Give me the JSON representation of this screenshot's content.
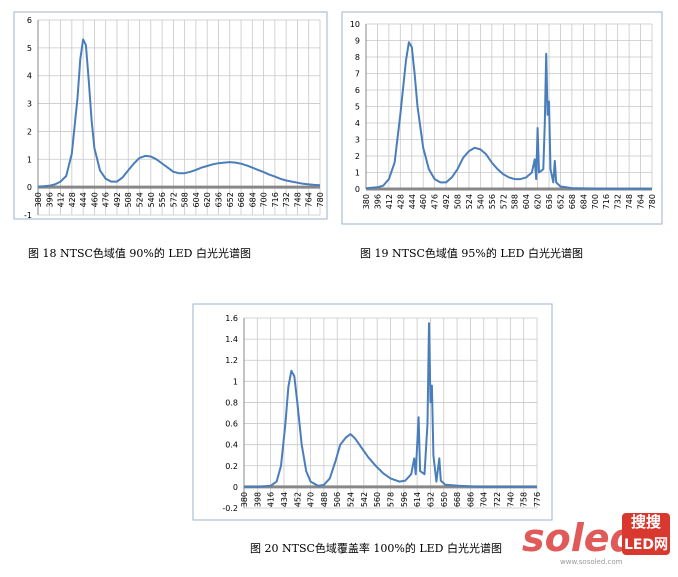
{
  "chart_data": [
    {
      "type": "line",
      "caption": "图 18 NTSC色域值 90%的 LED 白光光谱图",
      "x": [
        380,
        388,
        396,
        404,
        412,
        420,
        428,
        436,
        440,
        444,
        448,
        452,
        456,
        460,
        468,
        476,
        484,
        492,
        500,
        508,
        516,
        524,
        532,
        540,
        548,
        556,
        564,
        572,
        580,
        588,
        596,
        604,
        612,
        620,
        628,
        636,
        644,
        652,
        660,
        668,
        676,
        684,
        692,
        700,
        708,
        716,
        724,
        732,
        740,
        748,
        756,
        764,
        772,
        780
      ],
      "series": [
        {
          "color": "#4a7ebb",
          "values": [
            0.02,
            0.03,
            0.05,
            0.1,
            0.2,
            0.4,
            1.2,
            3.2,
            4.6,
            5.3,
            5.1,
            3.8,
            2.4,
            1.4,
            0.6,
            0.3,
            0.2,
            0.2,
            0.35,
            0.6,
            0.85,
            1.05,
            1.12,
            1.1,
            1.0,
            0.85,
            0.7,
            0.55,
            0.5,
            0.5,
            0.55,
            0.62,
            0.7,
            0.76,
            0.82,
            0.86,
            0.88,
            0.9,
            0.88,
            0.84,
            0.78,
            0.7,
            0.62,
            0.54,
            0.45,
            0.38,
            0.3,
            0.24,
            0.2,
            0.16,
            0.12,
            0.1,
            0.08,
            0.07
          ]
        }
      ],
      "xlim": [
        380,
        780
      ],
      "xticks": [
        380,
        396,
        412,
        428,
        444,
        460,
        476,
        492,
        508,
        524,
        540,
        556,
        572,
        588,
        604,
        620,
        636,
        652,
        668,
        684,
        700,
        716,
        732,
        748,
        764,
        780
      ],
      "ylim": [
        -1,
        6
      ],
      "yticks": [
        -1,
        0,
        1,
        2,
        3,
        4,
        5,
        6
      ],
      "grid": true
    },
    {
      "type": "line",
      "caption": "图 19 NTSC色域值 95%的 LED 白光光谱图",
      "x": [
        380,
        396,
        404,
        412,
        420,
        428,
        436,
        440,
        444,
        448,
        452,
        460,
        468,
        476,
        484,
        492,
        500,
        508,
        516,
        524,
        532,
        540,
        548,
        556,
        564,
        572,
        580,
        588,
        596,
        604,
        612,
        616,
        618,
        620,
        622,
        628,
        630,
        632,
        634,
        636,
        638,
        642,
        644,
        646,
        652,
        660,
        668,
        676,
        700,
        740,
        780
      ],
      "series": [
        {
          "color": "#4a7ebb",
          "values": [
            0.05,
            0.1,
            0.2,
            0.6,
            1.6,
            4.5,
            7.8,
            8.9,
            8.6,
            7.0,
            5.0,
            2.5,
            1.2,
            0.6,
            0.4,
            0.4,
            0.7,
            1.2,
            1.9,
            2.3,
            2.5,
            2.4,
            2.1,
            1.6,
            1.2,
            0.9,
            0.7,
            0.6,
            0.6,
            0.7,
            1.0,
            1.8,
            0.6,
            3.7,
            1.0,
            1.2,
            4.0,
            8.2,
            4.5,
            5.3,
            1.2,
            0.4,
            1.7,
            0.4,
            0.15,
            0.1,
            0.05,
            0.04,
            0.03,
            0.02,
            0.02
          ]
        }
      ],
      "xlim": [
        380,
        780
      ],
      "xticks": [
        380,
        396,
        412,
        428,
        444,
        460,
        476,
        492,
        508,
        524,
        540,
        556,
        572,
        588,
        604,
        620,
        636,
        652,
        668,
        684,
        700,
        716,
        732,
        748,
        764,
        780
      ],
      "ylim": [
        0,
        10
      ],
      "yticks": [
        0,
        1,
        2,
        3,
        4,
        5,
        6,
        7,
        8,
        9,
        10
      ],
      "grid": true
    },
    {
      "type": "line",
      "caption": "图 20 NTSC色域覆盖率 100%的 LED 白光光谱图",
      "x": [
        380,
        398,
        416,
        424,
        430,
        436,
        440,
        444,
        448,
        452,
        458,
        464,
        470,
        480,
        488,
        496,
        504,
        510,
        518,
        524,
        530,
        538,
        548,
        558,
        568,
        578,
        590,
        598,
        606,
        610,
        612,
        616,
        618,
        624,
        628,
        630,
        632,
        634,
        636,
        640,
        644,
        646,
        652,
        670,
        700,
        776
      ],
      "series": [
        {
          "color": "#4a7ebb",
          "values": [
            0,
            0,
            0.01,
            0.05,
            0.2,
            0.6,
            0.95,
            1.1,
            1.05,
            0.8,
            0.4,
            0.15,
            0.05,
            0.01,
            0.02,
            0.08,
            0.25,
            0.4,
            0.47,
            0.5,
            0.46,
            0.38,
            0.28,
            0.2,
            0.13,
            0.08,
            0.05,
            0.06,
            0.12,
            0.27,
            0.12,
            0.66,
            0.15,
            0.12,
            0.6,
            1.55,
            0.8,
            0.96,
            0.3,
            0.05,
            0.27,
            0.06,
            0.02,
            0.01,
            0,
            0
          ]
        }
      ],
      "xlim": [
        380,
        776
      ],
      "xticks": [
        380,
        398,
        416,
        434,
        452,
        470,
        488,
        506,
        524,
        542,
        560,
        578,
        596,
        614,
        632,
        650,
        668,
        686,
        704,
        722,
        740,
        758,
        776
      ],
      "ylim": [
        -0.2,
        1.6
      ],
      "yticks": [
        -0.2,
        0,
        0.2,
        0.4,
        0.6,
        0.8,
        1,
        1.2,
        1.4,
        1.6
      ],
      "grid": true
    }
  ],
  "watermark": {
    "brand": "soled",
    "badge_top": "搜搜",
    "badge_bottom": "LED网",
    "url": "www.sosoled.com"
  }
}
